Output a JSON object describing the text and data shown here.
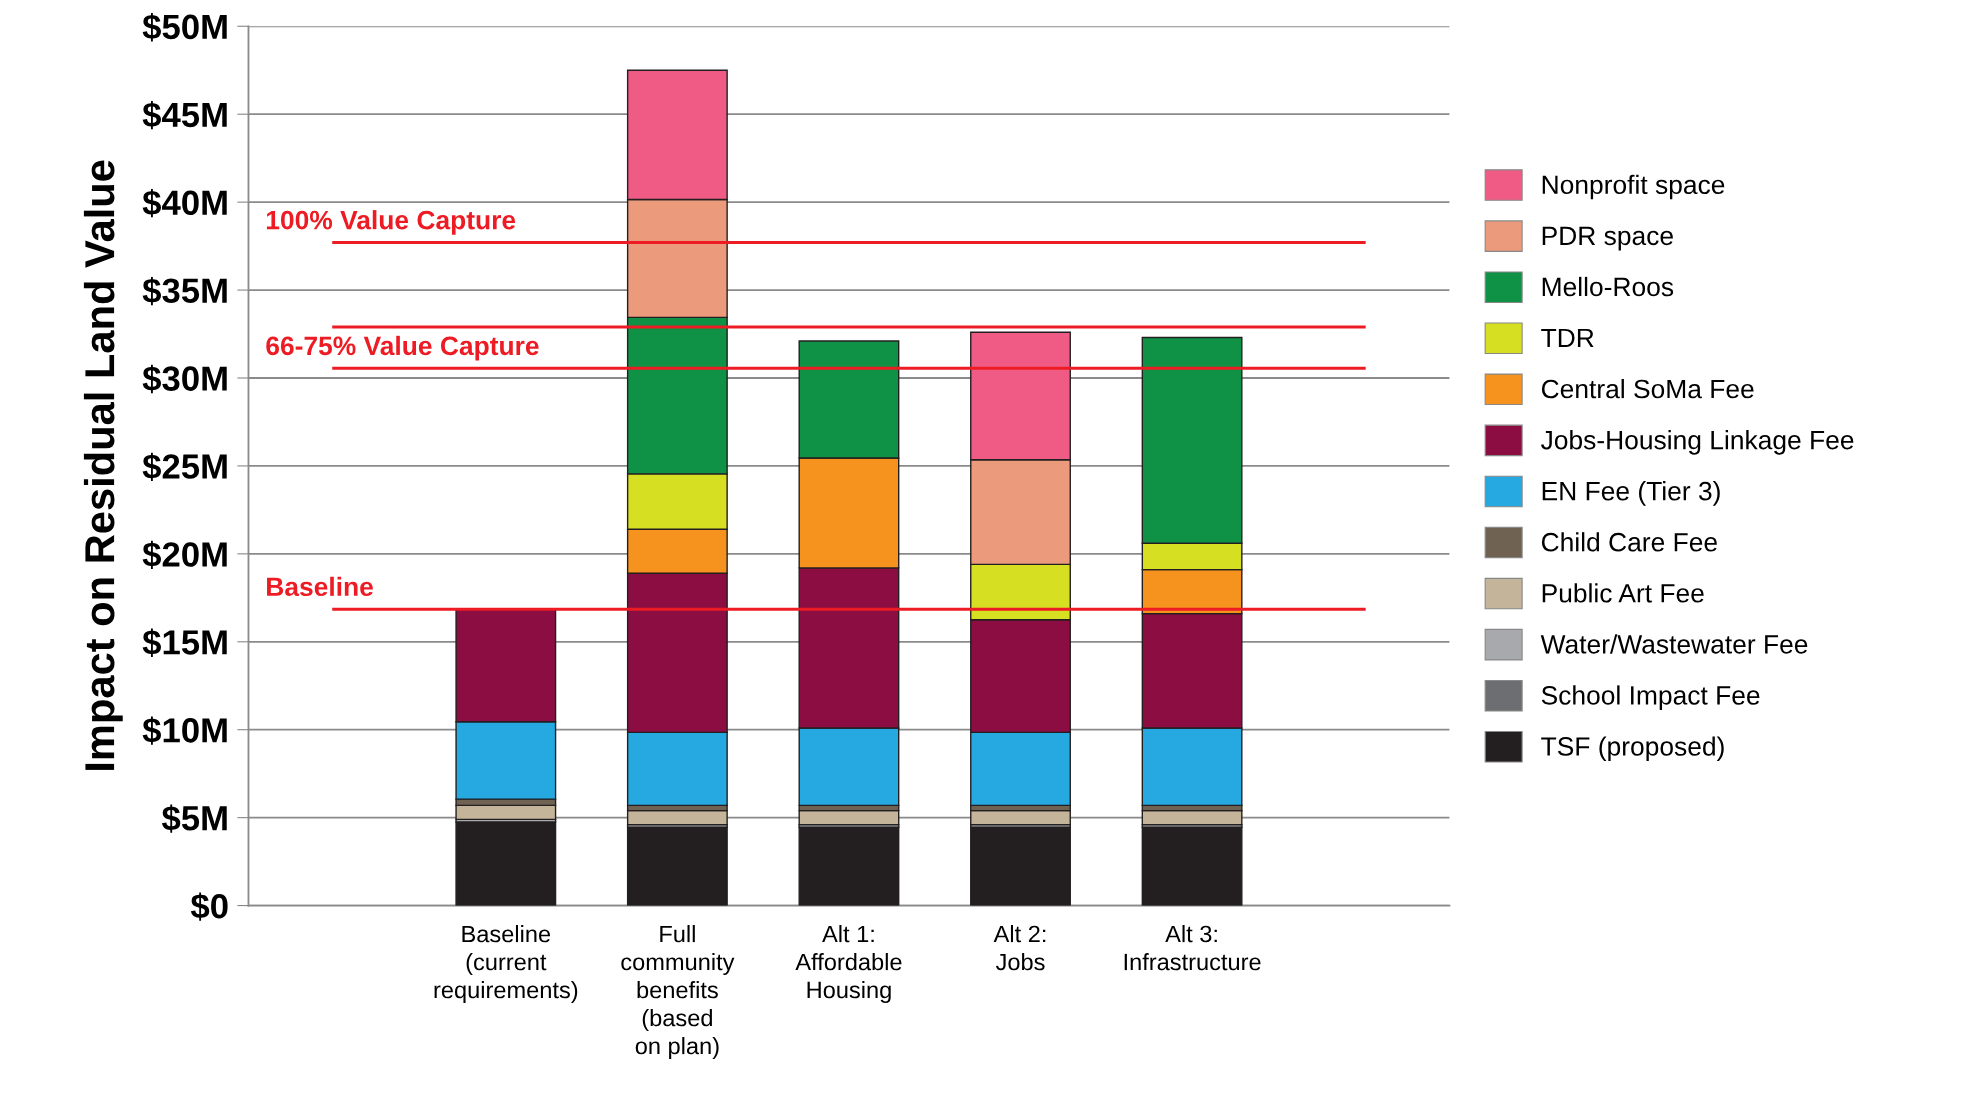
{
  "chart_data": {
    "type": "bar",
    "stacked": true,
    "ylabel": "Impact on Residual Land Value",
    "categories": [
      "Baseline\n(current\nrequirements)",
      "Full\ncommunity\nbenefits\n(based\non plan)",
      "Alt 1:\nAffordable\nHousing",
      "Alt 2:\nJobs",
      "Alt 3:\nInfrastructure"
    ],
    "series": [
      {
        "name": "TSF (proposed)",
        "color": "#231f20",
        "values": [
          4.75,
          4.45,
          4.45,
          4.45,
          4.45
        ]
      },
      {
        "name": "School Impact Fee",
        "color": "#6d6e71",
        "values": [
          null,
          null,
          null,
          null,
          null
        ]
      },
      {
        "name": "Water/Wastewater Fee",
        "color": "#a7a9ac",
        "values": [
          0.15,
          0.15,
          0.15,
          0.15,
          0.15
        ]
      },
      {
        "name": "Public Art Fee",
        "color": "#c4b49a",
        "values": [
          0.8,
          0.8,
          0.8,
          0.8,
          0.8
        ]
      },
      {
        "name": "Child Care Fee",
        "color": "#6f6253",
        "values": [
          0.35,
          0.3,
          0.3,
          0.3,
          0.3
        ]
      },
      {
        "name": "EN Fee (Tier 3)",
        "color": "#25a9e0",
        "values": [
          4.4,
          4.15,
          4.4,
          4.15,
          4.4
        ]
      },
      {
        "name": "Jobs-Housing Linkage Fee",
        "color": "#8b0d42",
        "values": [
          6.4,
          9.05,
          9.1,
          6.4,
          6.5
        ]
      },
      {
        "name": "Central SoMa Fee",
        "color": "#f6921e",
        "values": [
          null,
          2.5,
          6.25,
          null,
          2.5
        ]
      },
      {
        "name": "TDR",
        "color": "#d7df23",
        "values": [
          null,
          3.15,
          null,
          3.15,
          1.5
        ]
      },
      {
        "name": "Mello-Roos",
        "color": "#0f9246",
        "values": [
          null,
          8.9,
          6.65,
          null,
          11.7
        ]
      },
      {
        "name": "PDR space",
        "color": "#eb9b7b",
        "values": [
          null,
          6.7,
          null,
          5.95,
          null
        ]
      },
      {
        "name": "Nonprofit space",
        "color": "#ef5b84",
        "values": [
          null,
          7.35,
          null,
          7.25,
          null
        ]
      }
    ],
    "ylim": [
      0,
      50
    ],
    "yticks": [
      {
        "value": 0,
        "label": "$0"
      },
      {
        "value": 5,
        "label": "$5M"
      },
      {
        "value": 10,
        "label": "$10M"
      },
      {
        "value": 15,
        "label": "$15M"
      },
      {
        "value": 20,
        "label": "$20M"
      },
      {
        "value": 25,
        "label": "$25M"
      },
      {
        "value": 30,
        "label": "$30M"
      },
      {
        "value": 35,
        "label": "$35M"
      },
      {
        "value": 40,
        "label": "$40M"
      },
      {
        "value": 45,
        "label": "$45M"
      },
      {
        "value": 50,
        "label": "$50M"
      }
    ],
    "ref_lines": [
      {
        "axis": "y",
        "value": 37.7,
        "label": "100% Value Capture",
        "color": "#ed1c24"
      },
      {
        "axis": "y",
        "value": 32.9,
        "label": null,
        "color": "#ed1c24"
      },
      {
        "axis": "y",
        "value": 30.55,
        "label": "66-75% Value Capture",
        "color": "#ed1c24"
      },
      {
        "axis": "y",
        "value": 16.85,
        "label": "Baseline",
        "color": "#ed1c24"
      }
    ],
    "grid": "y",
    "legend": "right"
  }
}
